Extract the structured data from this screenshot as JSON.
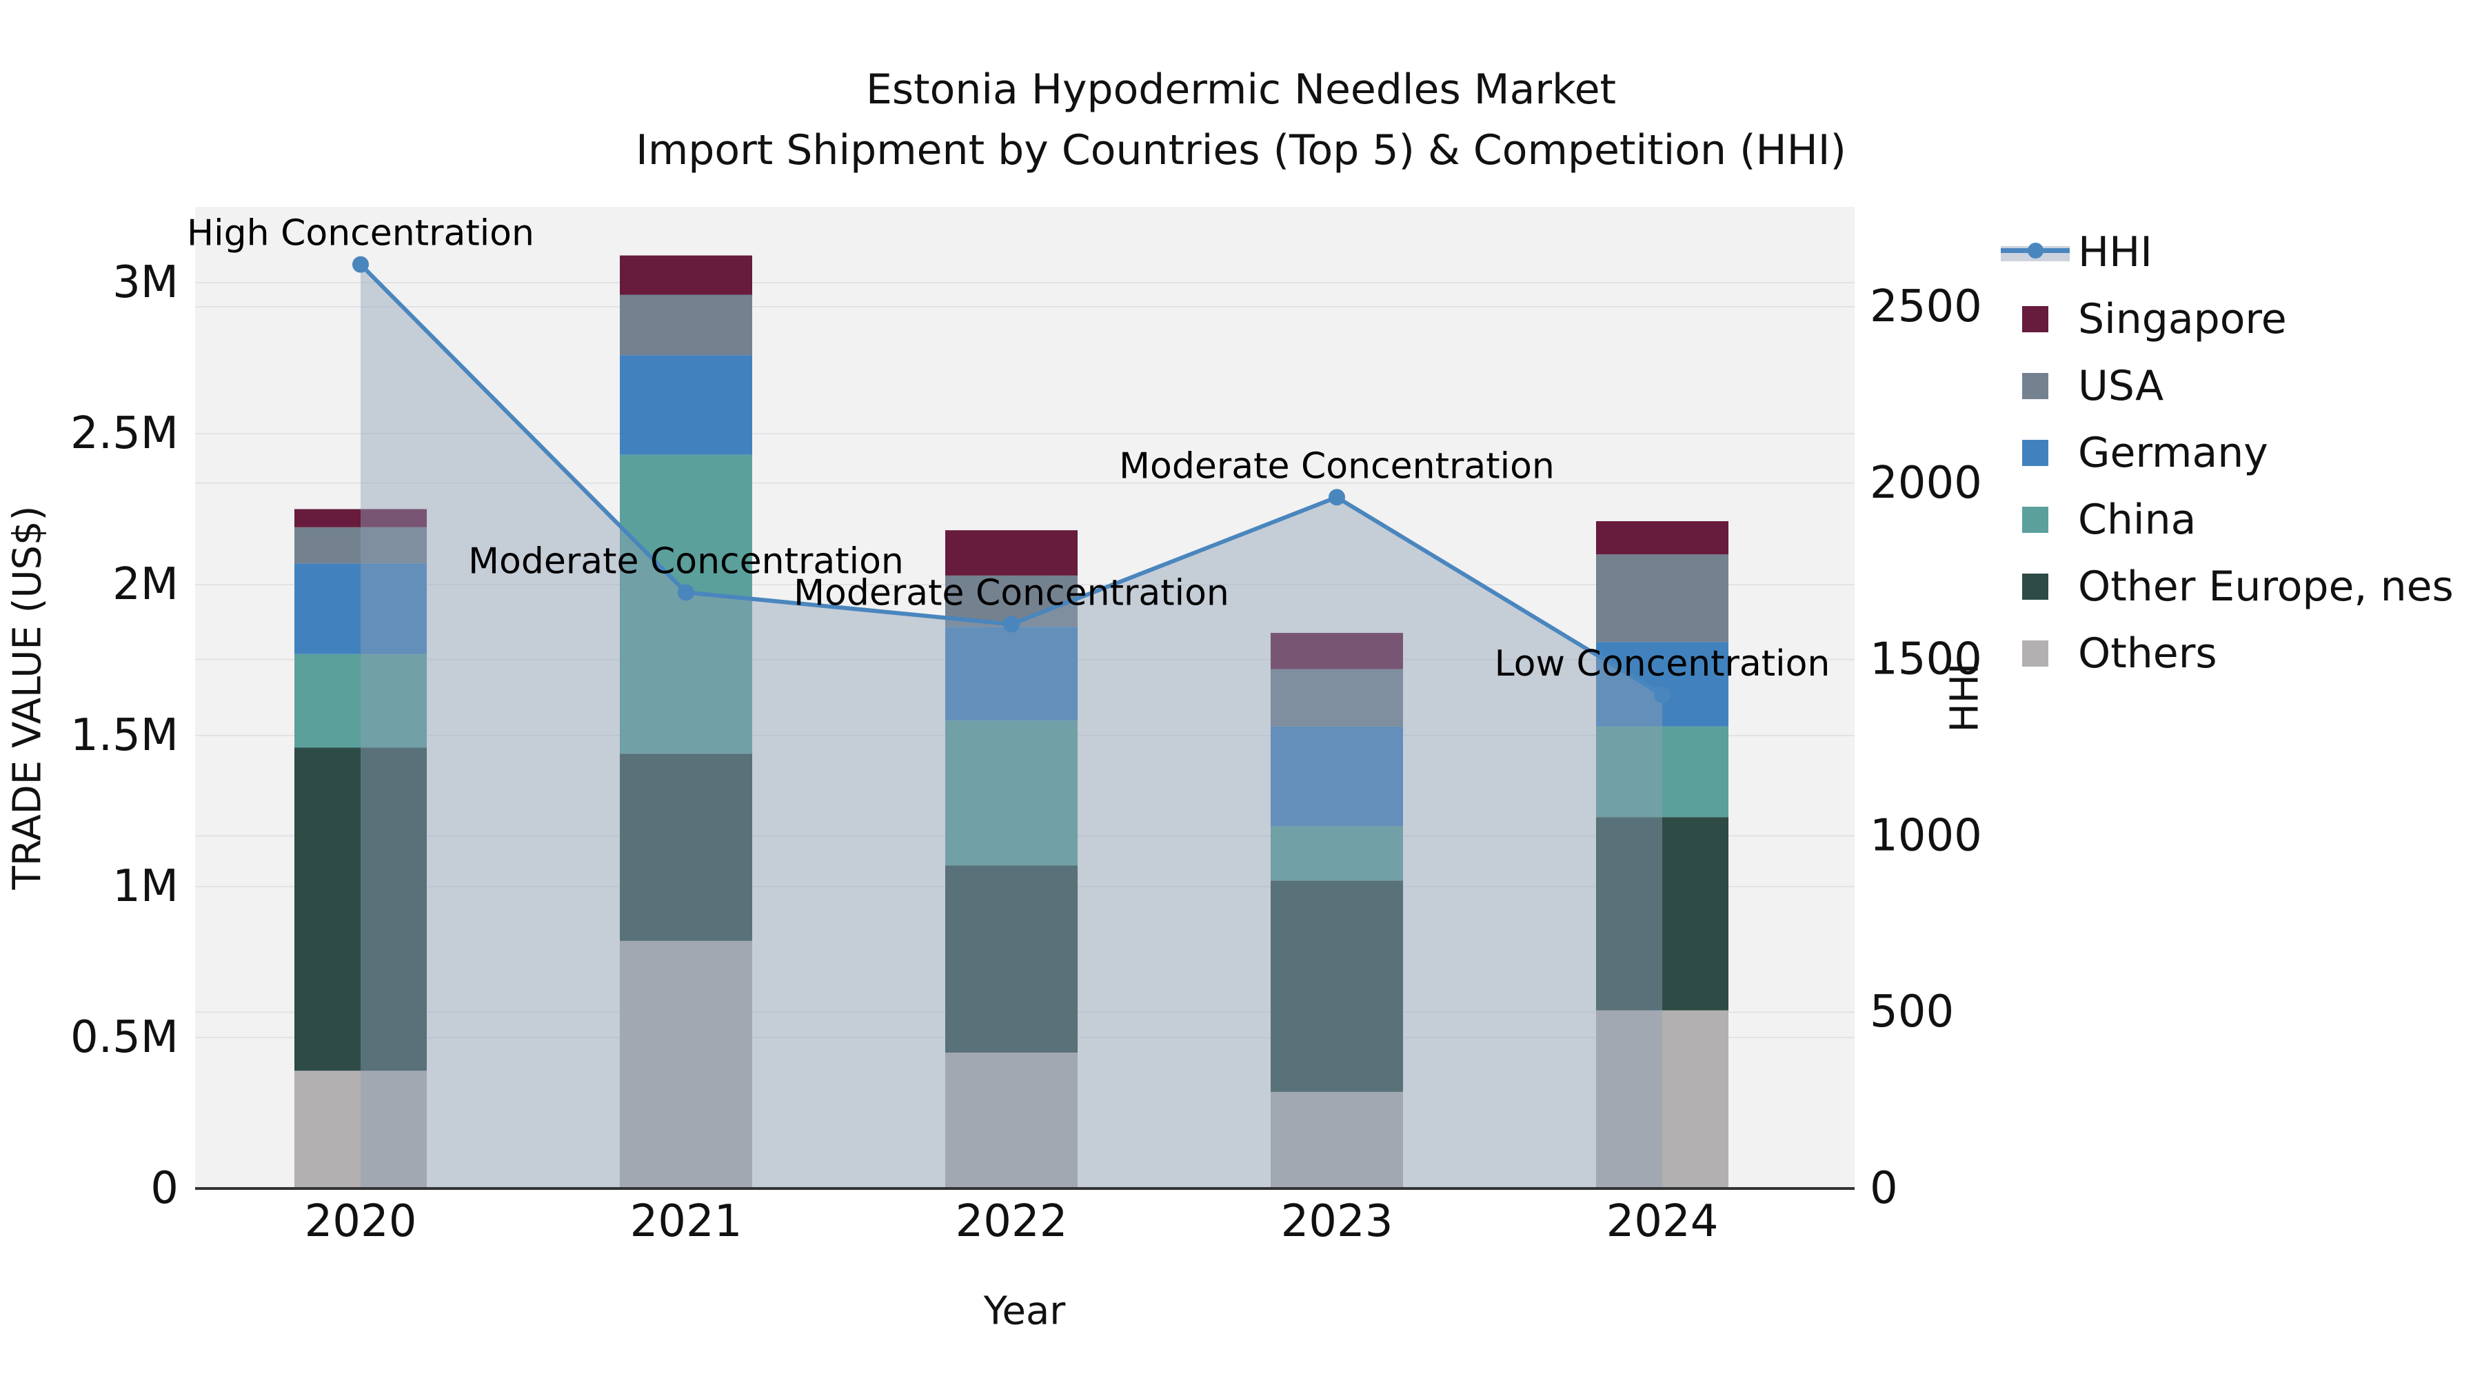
{
  "title": {
    "line1": "Estonia Hypodermic Needles Market",
    "line2": "Import Shipment by Countries (Top 5) & Competition (HHI)"
  },
  "axes": {
    "x_label": "Year",
    "y_left_label": "TRADE VALUE (US$)",
    "y_right_label": "HHI",
    "y_left_tick_labels": [
      "0",
      "0.5M",
      "1M",
      "1.5M",
      "2M",
      "2.5M",
      "3M"
    ],
    "y_left_tick_values_millions": [
      0,
      0.5,
      1,
      1.5,
      2,
      2.5,
      3
    ],
    "y_right_tick_labels": [
      "0",
      "500",
      "1000",
      "1500",
      "2000",
      "2500"
    ],
    "y_right_tick_values": [
      0,
      500,
      1000,
      1500,
      2000,
      2500
    ]
  },
  "legend": {
    "items": [
      {
        "label": "HHI",
        "type": "line"
      },
      {
        "label": "Singapore",
        "type": "square",
        "color": "#671b3d"
      },
      {
        "label": "USA",
        "type": "square",
        "color": "#74818f"
      },
      {
        "label": "Germany",
        "type": "square",
        "color": "#4182be"
      },
      {
        "label": "China",
        "type": "square",
        "color": "#5ca09c"
      },
      {
        "label": "Other Europe, nes",
        "type": "square",
        "color": "#2e4b46"
      },
      {
        "label": "Others",
        "type": "square",
        "color": "#b2b0b0"
      }
    ]
  },
  "chart_data": {
    "type": "bar",
    "subtype": "stacked-bars-with-line-overlay",
    "categories": [
      "2020",
      "2021",
      "2022",
      "2023",
      "2024"
    ],
    "value_unit": "US$ millions",
    "series": [
      {
        "name": "Others",
        "color": "#b2b0b0",
        "values": [
          0.39,
          0.82,
          0.45,
          0.32,
          0.59
        ]
      },
      {
        "name": "Other Europe, nes",
        "color": "#2e4b46",
        "values": [
          1.07,
          0.62,
          0.62,
          0.7,
          0.64
        ]
      },
      {
        "name": "China",
        "color": "#5ca09c",
        "values": [
          0.31,
          0.99,
          0.48,
          0.18,
          0.3
        ]
      },
      {
        "name": "Germany",
        "color": "#4182be",
        "values": [
          0.3,
          0.33,
          0.31,
          0.33,
          0.28
        ]
      },
      {
        "name": "USA",
        "color": "#74818f",
        "values": [
          0.12,
          0.2,
          0.17,
          0.19,
          0.29
        ]
      },
      {
        "name": "Singapore",
        "color": "#671b3d",
        "values": [
          0.06,
          0.13,
          0.15,
          0.12,
          0.11
        ]
      }
    ],
    "line_series": {
      "name": "HHI",
      "values": [
        2620,
        1690,
        1600,
        1960,
        1400
      ],
      "color": "#4a86be",
      "fill_color": "#8fa0b6",
      "fill_opacity": 0.45,
      "annotations": [
        "High Concentration",
        "Moderate Concentration",
        "Moderate Concentration",
        "Moderate Concentration",
        "Low Concentration"
      ]
    },
    "y_left_range_millions": [
      0,
      3.25
    ],
    "y_right_range": [
      0,
      2785
    ],
    "grid": true,
    "legend_position": "right-outside",
    "plot_background": "#f2f2f2",
    "grid_color": "#e3e3e7",
    "axis_line_color": "#333333"
  }
}
